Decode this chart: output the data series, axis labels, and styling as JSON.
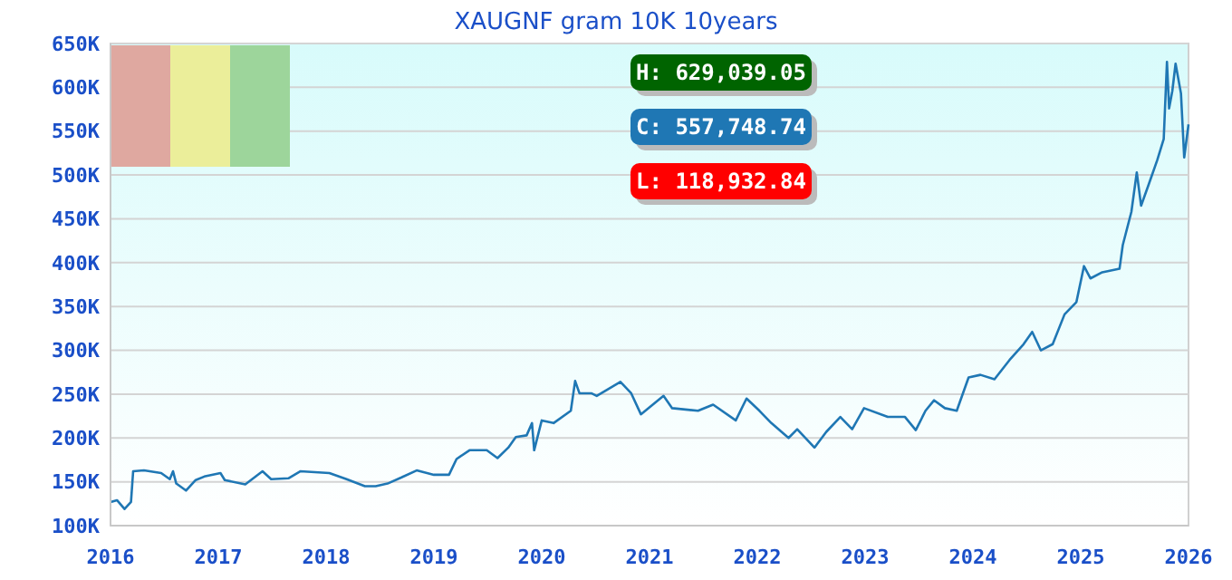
{
  "chart_data": {
    "type": "line",
    "title": "XAUGNF gram 10K 10years",
    "x": [
      2016.0,
      2016.06,
      2016.13,
      2016.19,
      2016.21,
      2016.31,
      2016.47,
      2016.55,
      2016.58,
      2016.61,
      2016.7,
      2016.79,
      2016.87,
      2017.02,
      2017.06,
      2017.25,
      2017.41,
      2017.49,
      2017.65,
      2017.76,
      2018.03,
      2018.19,
      2018.36,
      2018.46,
      2018.57,
      2018.7,
      2018.84,
      2019.0,
      2019.14,
      2019.21,
      2019.33,
      2019.49,
      2019.59,
      2019.69,
      2019.76,
      2019.86,
      2019.91,
      2019.93,
      2020.0,
      2020.11,
      2020.27,
      2020.31,
      2020.35,
      2020.46,
      2020.51,
      2020.73,
      2020.83,
      2020.92,
      2021.13,
      2021.21,
      2021.45,
      2021.59,
      2021.8,
      2021.9,
      2022.02,
      2022.13,
      2022.29,
      2022.37,
      2022.53,
      2022.64,
      2022.77,
      2022.88,
      2022.99,
      2023.21,
      2023.37,
      2023.47,
      2023.56,
      2023.64,
      2023.74,
      2023.85,
      2023.96,
      2024.07,
      2024.2,
      2024.34,
      2024.47,
      2024.55,
      2024.63,
      2024.74,
      2024.85,
      2024.96,
      2025.03,
      2025.09,
      2025.2,
      2025.36,
      2025.39,
      2025.47,
      2025.52,
      2025.56,
      2025.63,
      2025.71,
      2025.77,
      2025.8,
      2025.82,
      2025.85,
      2025.88,
      2025.93,
      2025.96,
      2026.0
    ],
    "series": [
      {
        "color": "#1f77b4",
        "values": [
          127000,
          129000,
          118933,
          127000,
          162000,
          163000,
          160000,
          153000,
          162000,
          148000,
          140000,
          152000,
          156000,
          160000,
          152000,
          147000,
          162000,
          153000,
          154000,
          162000,
          160000,
          153000,
          145000,
          145000,
          148000,
          155000,
          163000,
          158000,
          158000,
          176000,
          186000,
          186000,
          177000,
          189000,
          201000,
          203000,
          217000,
          186000,
          220000,
          217000,
          231000,
          265000,
          251000,
          251000,
          248000,
          264000,
          251000,
          227000,
          248000,
          234000,
          231000,
          238000,
          220000,
          245000,
          231000,
          217000,
          200000,
          210000,
          189000,
          207000,
          224000,
          210000,
          234000,
          224000,
          224000,
          209000,
          231000,
          243000,
          234000,
          231000,
          269000,
          272000,
          267000,
          289000,
          307000,
          321000,
          300000,
          307000,
          341000,
          355000,
          396000,
          382000,
          389000,
          393000,
          420000,
          458000,
          503000,
          465000,
          489000,
          517000,
          541000,
          629039,
          576000,
          596000,
          627000,
          593000,
          520000,
          557749
        ]
      }
    ],
    "xlim": [
      2016,
      2026
    ],
    "xticks": [
      2016,
      2017,
      2018,
      2019,
      2020,
      2021,
      2022,
      2023,
      2024,
      2025,
      2026
    ],
    "ylim": [
      100000,
      650000
    ],
    "yticks": [
      {
        "value": 100000,
        "label": "100K"
      },
      {
        "value": 150000,
        "label": "150K"
      },
      {
        "value": 200000,
        "label": "200K"
      },
      {
        "value": 250000,
        "label": "250K"
      },
      {
        "value": 300000,
        "label": "300K"
      },
      {
        "value": 350000,
        "label": "350K"
      },
      {
        "value": 400000,
        "label": "400K"
      },
      {
        "value": 450000,
        "label": "450K"
      },
      {
        "value": 500000,
        "label": "500K"
      },
      {
        "value": 550000,
        "label": "550K"
      },
      {
        "value": 600000,
        "label": "600K"
      },
      {
        "value": 650000,
        "label": "650K"
      }
    ],
    "grid": "y",
    "marker": "none",
    "line_style": "solid",
    "annotations": [
      "H: 629,039.05",
      "C: 557,748.74",
      "L: 118,932.84"
    ]
  }
}
